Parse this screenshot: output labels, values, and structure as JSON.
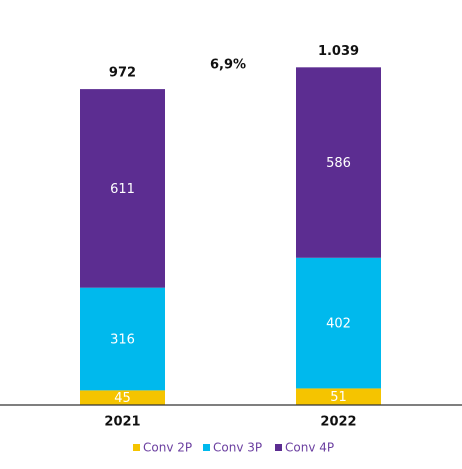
{
  "chart_data": {
    "type": "stacked_bar",
    "categories": [
      "2021",
      "2022"
    ],
    "series": [
      {
        "name": "Conv 2P",
        "color": "#f5c400",
        "values": [
          45,
          51
        ]
      },
      {
        "name": "Conv 3P",
        "color": "#00b9ed",
        "values": [
          316,
          402
        ]
      },
      {
        "name": "Conv 4P",
        "color": "#5c2d91",
        "values": [
          611,
          586
        ]
      }
    ],
    "totals": {
      "values": [
        972,
        1039
      ],
      "value_labels": [
        "972",
        "1.039"
      ]
    },
    "annotation": "6,9%",
    "ylim": [
      0,
      1200
    ]
  }
}
